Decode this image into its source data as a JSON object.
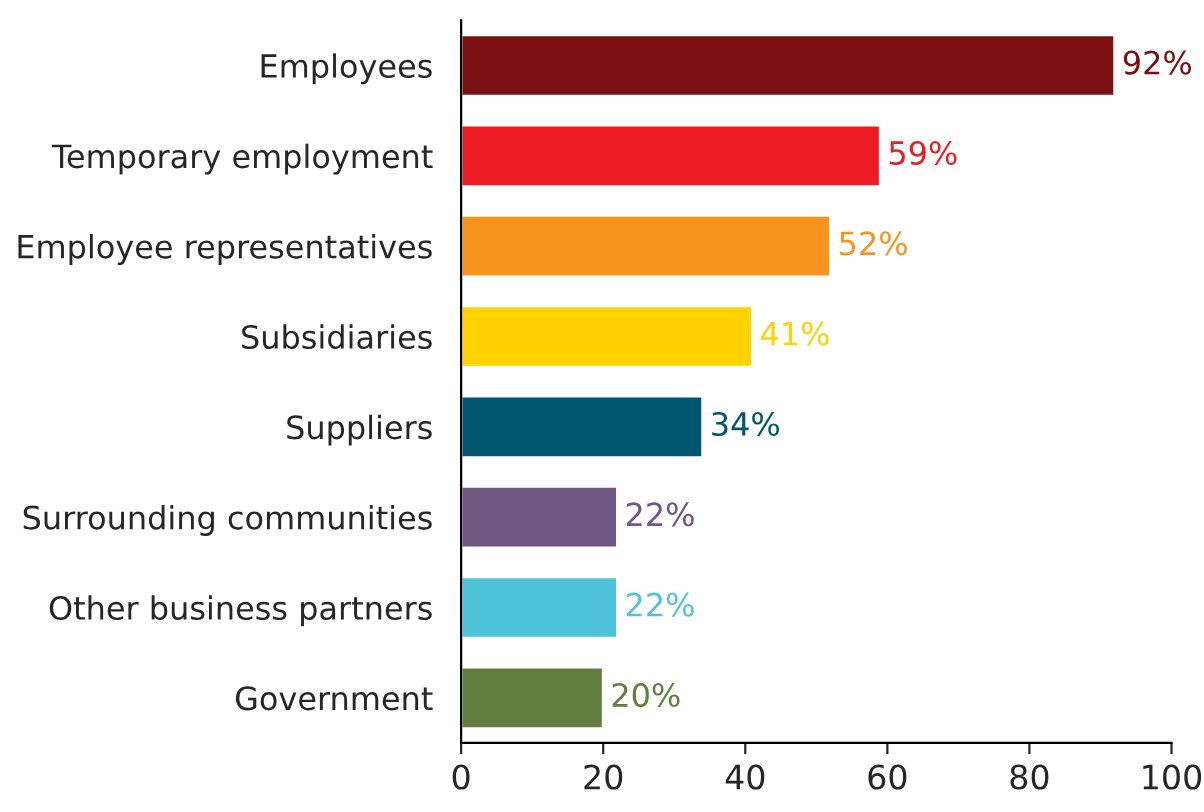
{
  "chart_data": {
    "type": "bar",
    "orientation": "horizontal",
    "categories": [
      "Employees",
      "Temporary employment",
      "Employee representatives",
      "Subsidiaries",
      "Suppliers",
      "Surrounding communities",
      "Other business partners",
      "Government"
    ],
    "values": [
      92,
      59,
      52,
      41,
      34,
      22,
      22,
      20
    ],
    "value_labels": [
      "92%",
      "59%",
      "52%",
      "41%",
      "34%",
      "22%",
      "22%",
      "20%"
    ],
    "colors": [
      "#7b0f12",
      "#ed1c24",
      "#f7941d",
      "#ffd200",
      "#00566e",
      "#6f5782",
      "#4fc3d9",
      "#627f3f"
    ],
    "xlim": [
      0,
      100
    ],
    "xticks": [
      0,
      20,
      40,
      60,
      80,
      100
    ],
    "grid": false,
    "legend": false
  }
}
